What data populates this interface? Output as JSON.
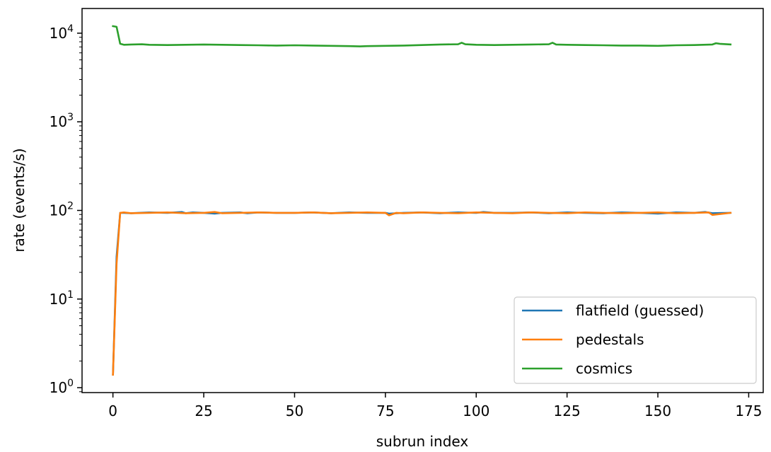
{
  "chart_data": {
    "type": "line",
    "title": "",
    "xlabel": "subrun index",
    "ylabel": "rate (events/s)",
    "yscale": "log",
    "xlim": [
      -8.5,
      179
    ],
    "ylim": [
      0.88,
      19000
    ],
    "xticks": [
      0,
      25,
      50,
      75,
      100,
      125,
      150,
      175
    ],
    "yticks": [
      {
        "value": 1,
        "base": "10",
        "exp": "0"
      },
      {
        "value": 10,
        "base": "10",
        "exp": "1"
      },
      {
        "value": 100,
        "base": "10",
        "exp": "2"
      },
      {
        "value": 1000,
        "base": "10",
        "exp": "3"
      },
      {
        "value": 10000,
        "base": "10",
        "exp": "4"
      }
    ],
    "grid": false,
    "legend": "lower-right",
    "series": [
      {
        "name": "flatfield (guessed)",
        "color": "#1f77b4",
        "x": [
          0,
          1,
          2,
          3,
          5,
          10,
          15,
          19,
          20,
          22,
          25,
          28,
          30,
          35,
          37,
          40,
          45,
          50,
          55,
          60,
          65,
          70,
          75,
          76,
          80,
          85,
          90,
          95,
          100,
          102,
          105,
          110,
          115,
          120,
          125,
          130,
          135,
          140,
          145,
          150,
          155,
          160,
          163,
          165,
          170
        ],
        "y": [
          1.4,
          30,
          94,
          94,
          93,
          95,
          94,
          96,
          93,
          95,
          94,
          92,
          94,
          95,
          93,
          95,
          94,
          94,
          95,
          93,
          95,
          94,
          94,
          92,
          94,
          95,
          93,
          95,
          94,
          96,
          94,
          94,
          95,
          93,
          95,
          94,
          93,
          95,
          94,
          92,
          95,
          94,
          96,
          93,
          94
        ]
      },
      {
        "name": "pedestals",
        "color": "#ff7f0e",
        "x": [
          0,
          1,
          2,
          3,
          5,
          10,
          15,
          20,
          25,
          28,
          30,
          35,
          40,
          45,
          50,
          55,
          60,
          65,
          70,
          75,
          76,
          78,
          80,
          85,
          90,
          95,
          100,
          105,
          110,
          115,
          120,
          125,
          130,
          135,
          140,
          145,
          150,
          155,
          160,
          164,
          165,
          170
        ],
        "y": [
          1.4,
          25,
          94,
          95,
          93,
          94,
          95,
          93,
          94,
          96,
          93,
          94,
          95,
          94,
          94,
          95,
          93,
          94,
          95,
          94,
          88,
          94,
          93,
          95,
          94,
          93,
          95,
          94,
          93,
          95,
          94,
          93,
          95,
          94,
          93,
          94,
          95,
          93,
          94,
          95,
          89,
          94
        ]
      },
      {
        "name": "cosmics",
        "color": "#2ca02c",
        "x": [
          0,
          1,
          2,
          3,
          5,
          8,
          10,
          15,
          20,
          25,
          30,
          35,
          40,
          45,
          50,
          55,
          60,
          65,
          68,
          70,
          75,
          80,
          85,
          90,
          95,
          96,
          97,
          100,
          105,
          110,
          115,
          120,
          121,
          122,
          125,
          130,
          135,
          140,
          145,
          150,
          155,
          160,
          165,
          166,
          167,
          170
        ],
        "y": [
          12000,
          11800,
          7600,
          7400,
          7450,
          7500,
          7400,
          7350,
          7400,
          7450,
          7400,
          7350,
          7300,
          7250,
          7300,
          7250,
          7200,
          7150,
          7100,
          7150,
          7200,
          7250,
          7350,
          7450,
          7500,
          7800,
          7500,
          7400,
          7350,
          7400,
          7450,
          7500,
          7800,
          7450,
          7400,
          7350,
          7300,
          7250,
          7250,
          7200,
          7300,
          7350,
          7450,
          7700,
          7600,
          7450
        ]
      }
    ]
  }
}
